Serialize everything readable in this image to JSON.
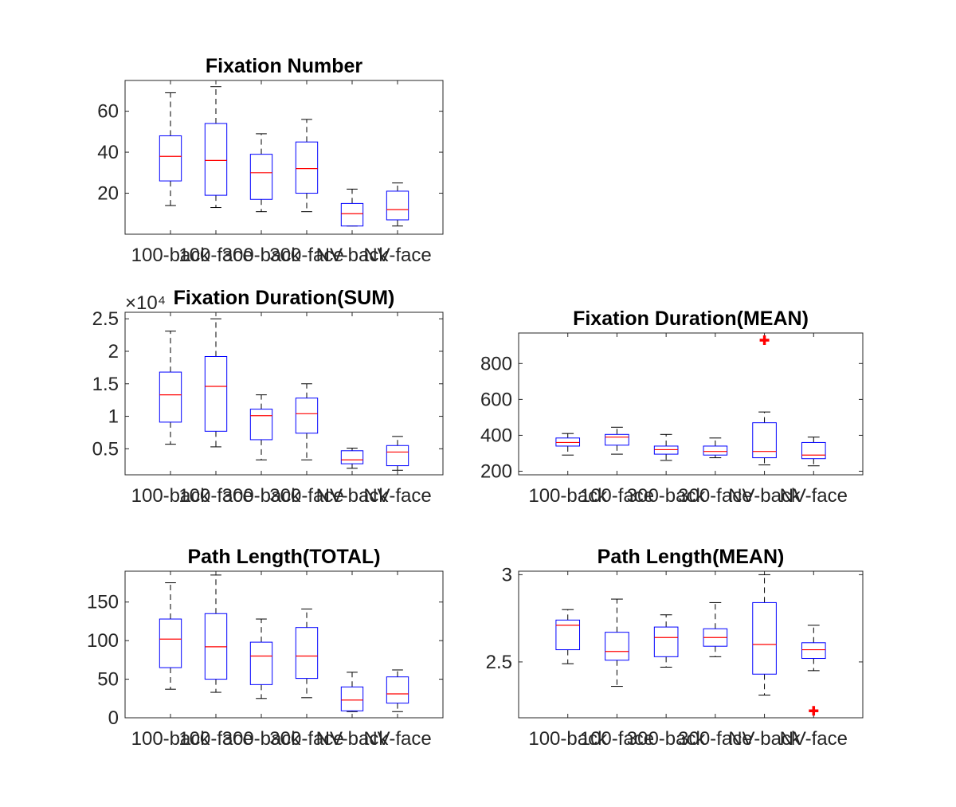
{
  "chart_data": [
    {
      "type": "box",
      "title": "Fixation Number",
      "categories": [
        "100-back",
        "100-face",
        "300-back",
        "300-face",
        "NV-back",
        "NV-face"
      ],
      "ylim": [
        0,
        75
      ],
      "yticks": [
        20,
        40,
        60
      ],
      "ytick_labels": [
        "20",
        "40",
        "60"
      ],
      "exponent": "",
      "boxes": [
        {
          "whisker_low": 14,
          "q1": 26,
          "median": 38,
          "q3": 48,
          "whisker_high": 69
        },
        {
          "whisker_low": 13,
          "q1": 19,
          "median": 36,
          "q3": 54,
          "whisker_high": 72
        },
        {
          "whisker_low": 11,
          "q1": 17,
          "median": 30,
          "q3": 39,
          "whisker_high": 49
        },
        {
          "whisker_low": 11,
          "q1": 20,
          "median": 32,
          "q3": 45,
          "whisker_high": 56
        },
        {
          "whisker_low": 4,
          "q1": 4,
          "median": 10,
          "q3": 15,
          "whisker_high": 22
        },
        {
          "whisker_low": 4,
          "q1": 7,
          "median": 12,
          "q3": 21,
          "whisker_high": 25
        }
      ],
      "outliers": []
    },
    {
      "type": "box",
      "title": "Fixation Duration(SUM)",
      "categories": [
        "100-back",
        "100-face",
        "300-back",
        "300-face",
        "NV-back",
        "NV-face"
      ],
      "ylim": [
        0.1,
        2.6
      ],
      "yticks": [
        0.5,
        1,
        1.5,
        2,
        2.5
      ],
      "ytick_labels": [
        "0.5",
        "1",
        "1.5",
        "2",
        "2.5"
      ],
      "exponent": "×10⁴",
      "boxes": [
        {
          "whisker_low": 0.57,
          "q1": 0.91,
          "median": 1.33,
          "q3": 1.68,
          "whisker_high": 2.31
        },
        {
          "whisker_low": 0.53,
          "q1": 0.77,
          "median": 1.46,
          "q3": 1.92,
          "whisker_high": 2.5
        },
        {
          "whisker_low": 0.33,
          "q1": 0.64,
          "median": 1.01,
          "q3": 1.11,
          "whisker_high": 1.33
        },
        {
          "whisker_low": 0.33,
          "q1": 0.74,
          "median": 1.04,
          "q3": 1.28,
          "whisker_high": 1.5
        },
        {
          "whisker_low": 0.2,
          "q1": 0.27,
          "median": 0.33,
          "q3": 0.47,
          "whisker_high": 0.51
        },
        {
          "whisker_low": 0.17,
          "q1": 0.24,
          "median": 0.45,
          "q3": 0.55,
          "whisker_high": 0.69
        }
      ],
      "outliers": []
    },
    {
      "type": "box",
      "title": "Fixation Duration(MEAN)",
      "categories": [
        "100-back",
        "100-face",
        "300-back",
        "300-face",
        "NV-back",
        "NV-face"
      ],
      "ylim": [
        180,
        970
      ],
      "yticks": [
        200,
        400,
        600,
        800
      ],
      "ytick_labels": [
        "200",
        "400",
        "600",
        "800"
      ],
      "exponent": "",
      "boxes": [
        {
          "whisker_low": 290,
          "q1": 340,
          "median": 360,
          "q3": 385,
          "whisker_high": 410
        },
        {
          "whisker_low": 295,
          "q1": 345,
          "median": 390,
          "q3": 405,
          "whisker_high": 445
        },
        {
          "whisker_low": 260,
          "q1": 295,
          "median": 320,
          "q3": 340,
          "whisker_high": 405
        },
        {
          "whisker_low": 275,
          "q1": 290,
          "median": 310,
          "q3": 340,
          "whisker_high": 385
        },
        {
          "whisker_low": 235,
          "q1": 275,
          "median": 310,
          "q3": 470,
          "whisker_high": 530
        },
        {
          "whisker_low": 230,
          "q1": 270,
          "median": 290,
          "q3": 360,
          "whisker_high": 390
        }
      ],
      "outliers": [
        {
          "box": 4,
          "value": 930
        }
      ]
    },
    {
      "type": "box",
      "title": "Path Length(TOTAL)",
      "categories": [
        "100-back",
        "100-face",
        "300-back",
        "300-face",
        "NV-back",
        "NV-face"
      ],
      "ylim": [
        0,
        190
      ],
      "yticks": [
        0,
        50,
        100,
        150
      ],
      "ytick_labels": [
        "0",
        "50",
        "100",
        "150"
      ],
      "exponent": "",
      "boxes": [
        {
          "whisker_low": 37,
          "q1": 65,
          "median": 102,
          "q3": 128,
          "whisker_high": 175
        },
        {
          "whisker_low": 33,
          "q1": 50,
          "median": 92,
          "q3": 135,
          "whisker_high": 185
        },
        {
          "whisker_low": 25,
          "q1": 43,
          "median": 80,
          "q3": 98,
          "whisker_high": 128
        },
        {
          "whisker_low": 26,
          "q1": 51,
          "median": 80,
          "q3": 117,
          "whisker_high": 141
        },
        {
          "whisker_low": 8,
          "q1": 9,
          "median": 23,
          "q3": 40,
          "whisker_high": 59
        },
        {
          "whisker_low": 8,
          "q1": 19,
          "median": 31,
          "q3": 53,
          "whisker_high": 62
        }
      ],
      "outliers": []
    },
    {
      "type": "box",
      "title": "Path Length(MEAN)",
      "categories": [
        "100-back",
        "100-face",
        "300-back",
        "300-face",
        "NV-back",
        "NV-face"
      ],
      "ylim": [
        2.18,
        3.02
      ],
      "yticks": [
        2.5,
        3
      ],
      "ytick_labels": [
        "2.5",
        "3"
      ],
      "exponent": "",
      "boxes": [
        {
          "whisker_low": 2.49,
          "q1": 2.57,
          "median": 2.71,
          "q3": 2.74,
          "whisker_high": 2.8
        },
        {
          "whisker_low": 2.36,
          "q1": 2.51,
          "median": 2.56,
          "q3": 2.67,
          "whisker_high": 2.86
        },
        {
          "whisker_low": 2.47,
          "q1": 2.53,
          "median": 2.64,
          "q3": 2.7,
          "whisker_high": 2.77
        },
        {
          "whisker_low": 2.53,
          "q1": 2.59,
          "median": 2.64,
          "q3": 2.69,
          "whisker_high": 2.84
        },
        {
          "whisker_low": 2.31,
          "q1": 2.43,
          "median": 2.6,
          "q3": 2.84,
          "whisker_high": 3.0
        },
        {
          "whisker_low": 2.45,
          "q1": 2.52,
          "median": 2.57,
          "q3": 2.61,
          "whisker_high": 2.71
        }
      ],
      "outliers": [
        {
          "box": 5,
          "value": 2.22
        }
      ]
    }
  ],
  "colors": {
    "box": "#0000ff",
    "median": "#ff0000",
    "whisker": "#000000",
    "outlier": "#ff0000",
    "axis": "#262626"
  }
}
